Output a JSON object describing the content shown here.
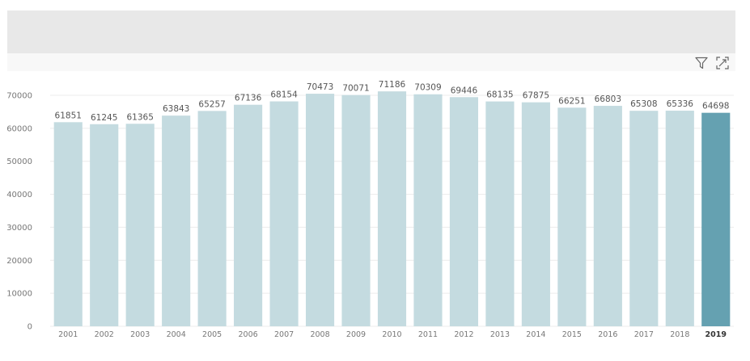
{
  "toolbar": {
    "filter_icon": "filter-icon",
    "focus_icon": "focus-mode-icon"
  },
  "colors": {
    "bar": "#c4dbe0",
    "bar_highlight": "#65a1b1",
    "grid": "#ececec",
    "tick_text": "#777777",
    "label_text": "#555555"
  },
  "chart_data": {
    "type": "bar",
    "categories": [
      "2001",
      "2002",
      "2003",
      "2004",
      "2005",
      "2006",
      "2007",
      "2008",
      "2009",
      "2010",
      "2011",
      "2012",
      "2013",
      "2014",
      "2015",
      "2016",
      "2017",
      "2018",
      "2019"
    ],
    "values": [
      61851,
      61245,
      61365,
      63843,
      65257,
      67136,
      68154,
      70473,
      70071,
      71186,
      70309,
      69446,
      68135,
      67875,
      66251,
      66803,
      65308,
      65336,
      64698
    ],
    "highlighted_category": "2019",
    "ylim": [
      0,
      70000
    ],
    "yticks": [
      0,
      10000,
      20000,
      30000,
      40000,
      50000,
      60000,
      70000
    ],
    "grid": true,
    "data_labels": true,
    "title": "",
    "xlabel": "",
    "ylabel": ""
  }
}
